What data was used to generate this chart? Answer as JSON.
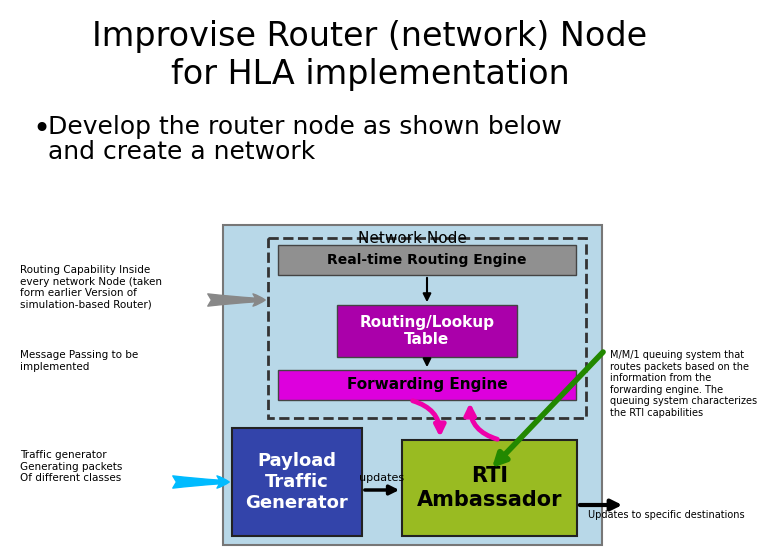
{
  "title_line1": "Improvise Router (network) Node",
  "title_line2": "for HLA implementation",
  "bullet_line1": "Develop the router node as shown below",
  "bullet_line2": "and create a network",
  "bg_color": "#ffffff",
  "network_node_bg": "#b8d8e8",
  "network_node_label": "Network Node",
  "routing_engine_label": "Real-time Routing Engine",
  "routing_engine_color": "#909090",
  "routing_engine_text": "#000000",
  "lookup_label": "Routing/Lookup\nTable",
  "lookup_color": "#aa00aa",
  "lookup_text": "#ffffff",
  "forwarding_label": "Forwarding Engine",
  "forwarding_color": "#dd00dd",
  "forwarding_text": "#000000",
  "payload_label": "Payload\nTraffic\nGenerator",
  "payload_color": "#3344aa",
  "payload_text": "#ffffff",
  "rti_label": "RTI\nAmbassador",
  "rti_color": "#99bb22",
  "rti_text": "#000000",
  "left_note1": "Routing Capability Inside\nevery network Node (taken\nform earlier Version of\nsimulation-based Router)",
  "left_note2": "Message Passing to be\nimplemented",
  "left_note3": "Traffic generator\nGenerating packets\nOf different classes",
  "right_note1": "M/M/1 queuing system that\nroutes packets based on the\ninformation from the\nforwarding engine. The\nqueuing system characterizes\nthe RTI capabilities",
  "right_note2": "Updates to specific destinations",
  "updates_label": "updates"
}
